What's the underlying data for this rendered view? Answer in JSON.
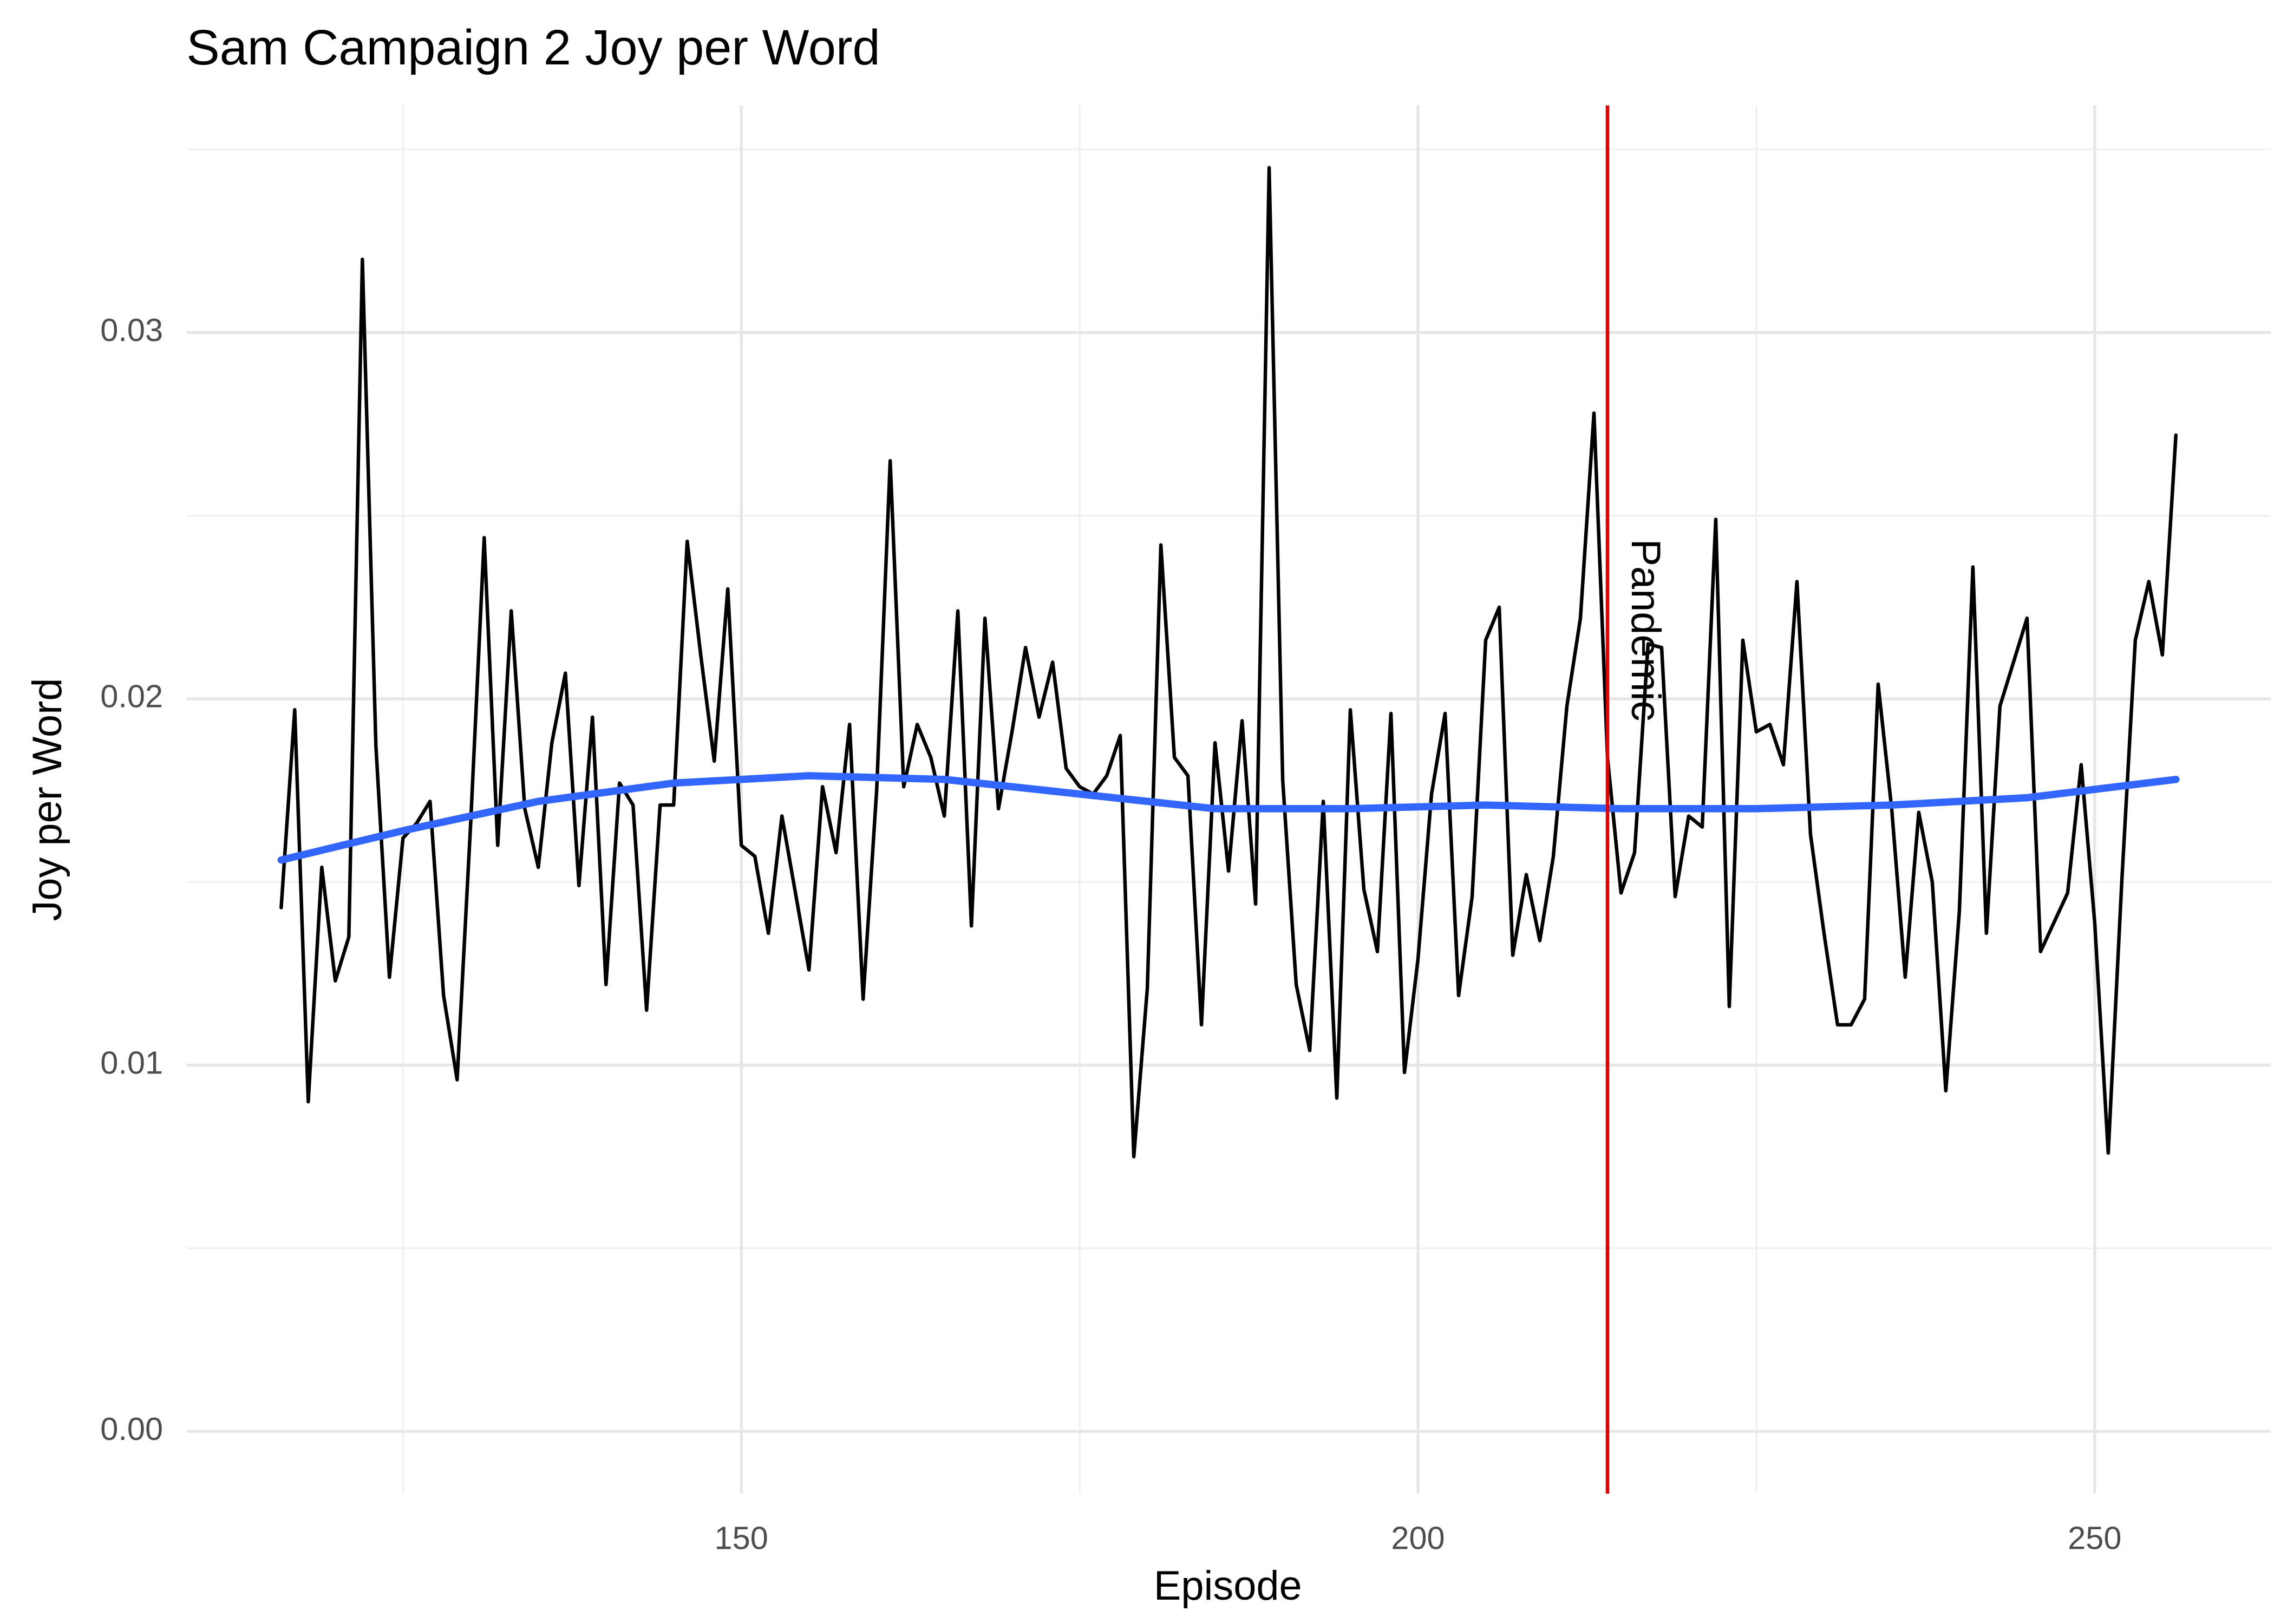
{
  "chart_data": {
    "type": "line",
    "title": "Sam Campaign 2 Joy per Word",
    "x_label": "Episode",
    "y_label": "Joy per Word",
    "xlim": [
      109,
      263
    ],
    "ylim": [
      -0.0017,
      0.0362
    ],
    "xticks": [
      150,
      200,
      250
    ],
    "x_minor_ticks": [
      125,
      175,
      225
    ],
    "yticks": [
      {
        "value": 0,
        "label": "0.00"
      },
      {
        "value": 0.01,
        "label": "0.01"
      },
      {
        "value": 0.02,
        "label": "0.02"
      },
      {
        "value": 0.03,
        "label": "0.03"
      }
    ],
    "y_minor_ticks": [
      0.005,
      0.015,
      0.025,
      0.035
    ],
    "grid": true,
    "series": [
      {
        "color": "#000000",
        "x": [
          116,
          117,
          118,
          119,
          120,
          121,
          122,
          123,
          124,
          125,
          126,
          127,
          128,
          129,
          130,
          131,
          132,
          133,
          134,
          135,
          136,
          137,
          138,
          139,
          140,
          141,
          142,
          143,
          144,
          145,
          146,
          147,
          148,
          149,
          150,
          151,
          152,
          153,
          154,
          155,
          156,
          157,
          158,
          159,
          160,
          161,
          162,
          163,
          164,
          165,
          166,
          167,
          168,
          169,
          170,
          171,
          172,
          173,
          174,
          175,
          176,
          177,
          178,
          179,
          180,
          181,
          182,
          183,
          184,
          185,
          186,
          187,
          188,
          189,
          190,
          191,
          192,
          193,
          194,
          195,
          196,
          197,
          198,
          199,
          200,
          201,
          202,
          203,
          204,
          205,
          206,
          207,
          208,
          209,
          210,
          211,
          212,
          213,
          214,
          215,
          216,
          217,
          218,
          219,
          220,
          221,
          222,
          223,
          224,
          225,
          226,
          227,
          228,
          229,
          230,
          231,
          232,
          233,
          234,
          235,
          236,
          237,
          238,
          239,
          240,
          241,
          242,
          243,
          244,
          245,
          246,
          247,
          248,
          249,
          250,
          251,
          252,
          253,
          254,
          255,
          256
        ],
        "values": [
          0.0143,
          0.0197,
          0.009,
          0.0154,
          0.0123,
          0.0135,
          0.032,
          0.0187,
          0.0124,
          0.0162,
          0.0166,
          0.0172,
          0.0119,
          0.0096,
          0.0166,
          0.0244,
          0.016,
          0.0224,
          0.017,
          0.0154,
          0.0188,
          0.0207,
          0.0149,
          0.0195,
          0.0122,
          0.0177,
          0.0171,
          0.0115,
          0.0171,
          0.0171,
          0.0243,
          0.0212,
          0.0183,
          0.023,
          0.016,
          0.0157,
          0.0136,
          0.0168,
          0.0147,
          0.0126,
          0.0176,
          0.0158,
          0.0193,
          0.0118,
          0.0175,
          0.0265,
          0.0176,
          0.0193,
          0.0184,
          0.0168,
          0.0224,
          0.0138,
          0.0222,
          0.017,
          0.0191,
          0.0214,
          0.0195,
          0.021,
          0.0181,
          0.0176,
          0.0174,
          0.0179,
          0.019,
          0.0075,
          0.0121,
          0.0242,
          0.0184,
          0.0179,
          0.0111,
          0.0188,
          0.0153,
          0.0194,
          0.0144,
          0.0345,
          0.0178,
          0.0122,
          0.0104,
          0.0172,
          0.0091,
          0.0197,
          0.0148,
          0.0131,
          0.0196,
          0.0098,
          0.0129,
          0.0174,
          0.0196,
          0.0119,
          0.0146,
          0.0216,
          0.0225,
          0.013,
          0.0152,
          0.0134,
          0.0157,
          0.0198,
          0.0222,
          0.0278,
          0.0184,
          0.0147,
          0.0158,
          0.0215,
          0.0214,
          0.0146,
          0.0168,
          0.0165,
          0.0249,
          0.0116,
          0.0216,
          0.0191,
          0.0193,
          0.0182,
          0.0232,
          0.0163,
          0.0136,
          0.0111,
          0.0111,
          0.0118,
          0.0204,
          0.017,
          0.0124,
          0.0169,
          0.015,
          0.0093,
          0.0142,
          0.0236,
          0.0136,
          0.0198,
          0.021,
          0.0222,
          0.0131,
          0.0139,
          0.0147,
          0.0182,
          0.0139,
          0.0076,
          0.015,
          0.0216,
          0.0232,
          0.0212,
          0.0272
        ]
      },
      {
        "color": "#3366ff",
        "x": [
          116,
          125,
          135,
          145,
          155,
          165,
          175,
          185,
          195,
          205,
          215,
          225,
          235,
          245,
          256
        ],
        "values": [
          0.0156,
          0.0164,
          0.0172,
          0.0177,
          0.0179,
          0.0178,
          0.0174,
          0.017,
          0.017,
          0.0171,
          0.017,
          0.017,
          0.0171,
          0.0173,
          0.0178
        ]
      }
    ],
    "vlines": [
      {
        "x": 214,
        "color": "#e00000",
        "label": "Pandemic"
      }
    ]
  }
}
